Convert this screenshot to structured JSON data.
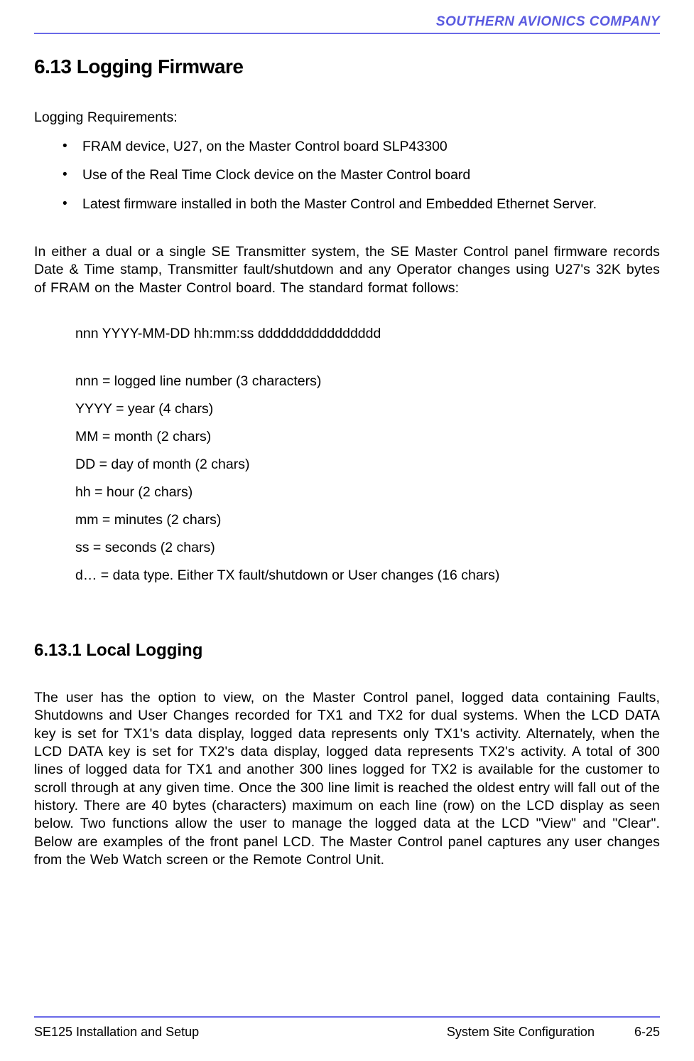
{
  "header": {
    "company": "SOUTHERN AVIONICS COMPANY"
  },
  "colors": {
    "rule": "#6a6ae8",
    "company_text": "#5a5ae0",
    "body_text": "#000000",
    "background": "#ffffff"
  },
  "section": {
    "number_title": "6.13  Logging Firmware",
    "intro": "Logging Requirements:",
    "requirements": [
      "FRAM device, U27, on the Master Control board SLP43300",
      "Use of the Real Time Clock device on the Master Control board",
      "Latest firmware installed in both the Master Control and Embedded Ethernet Server."
    ],
    "paragraph1": "In either a dual or a single SE Transmitter system, the SE Master Control panel firmware records Date & Time stamp, Transmitter fault/shutdown and any Operator changes using U27's 32K bytes of FRAM on the Master Control board. The standard format follows:",
    "format_line": "nnn YYYY-MM-DD hh:mm:ss dddddddddddddddd",
    "definitions": [
      "nnn = logged line number (3 characters)",
      "YYYY = year (4 chars)",
      "MM = month (2 chars)",
      "DD = day of month (2 chars)",
      "hh = hour (2 chars)",
      "mm = minutes (2 chars)",
      "ss = seconds (2 chars)",
      "d… = data type. Either TX fault/shutdown or User changes (16 chars)"
    ]
  },
  "subsection": {
    "number_title": "6.13.1  Local Logging",
    "paragraph": "The user has the option to view, on the Master Control panel, logged data containing Faults, Shutdowns and User Changes recorded for TX1 and TX2 for dual systems. When the LCD DATA key is set for TX1's data display, logged data represents only TX1's activity.  Alternately, when the LCD DATA key is set for TX2's data display, logged data represents TX2's activity.  A total of 300 lines of logged data for TX1 and another 300 lines logged for TX2 is available for the customer to scroll through at any given time.  Once the 300 line limit is reached the oldest entry will fall out of the history.  There are 40 bytes (characters) maximum on each line (row) on the LCD display as seen below.  Two functions allow the user to manage the logged data at the LCD \"View\" and \"Clear\".  Below are examples of the front panel LCD.  The Master Control panel captures any user changes from the Web Watch screen or the Remote Control Unit."
  },
  "footer": {
    "left": "SE125 Installation and Setup",
    "center": "System Site Configuration",
    "right": "6-25"
  }
}
